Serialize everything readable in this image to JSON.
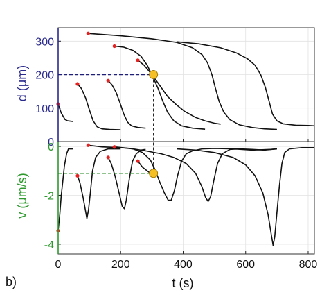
{
  "figure": {
    "panel_label": "b)",
    "xlabel": "t (s)",
    "top_ylabel": "d (μm)",
    "bottom_ylabel": "v (μm/s)",
    "top_axis_color": "#2a2a8c",
    "bottom_axis_color": "#2e9a2e",
    "guide_top_color": "#1f1f7a",
    "guide_bottom_color": "#1f8a1f",
    "marker_color": "#e52222",
    "highlight_fill": "#f5bf26",
    "highlight_stroke": "#a67c00"
  },
  "chart_data": [
    {
      "type": "line",
      "panel": "top",
      "ylabel": "d (μm)",
      "xlim": [
        0,
        820
      ],
      "ylim": [
        0,
        340
      ],
      "x_ticks": [
        0,
        200,
        400,
        600,
        800
      ],
      "y_ticks": [
        0,
        100,
        200,
        300
      ],
      "grid": true,
      "series": [
        {
          "points": [
            [
              0,
              112
            ],
            [
              10,
              85
            ],
            [
              22,
              66
            ],
            [
              30,
              62
            ],
            [
              48,
              60
            ]
          ]
        },
        {
          "points": [
            [
              62,
              172
            ],
            [
              75,
              158
            ],
            [
              88,
              130
            ],
            [
              100,
              95
            ],
            [
              112,
              62
            ],
            [
              125,
              44
            ],
            [
              140,
              38
            ],
            [
              165,
              36
            ],
            [
              200,
              35
            ]
          ]
        },
        {
          "points": [
            [
              160,
              182
            ],
            [
              172,
              170
            ],
            [
              185,
              148
            ],
            [
              197,
              118
            ],
            [
              210,
              82
            ],
            [
              222,
              58
            ],
            [
              235,
              47
            ],
            [
              255,
              42
            ],
            [
              280,
              40
            ]
          ]
        },
        {
          "points": [
            [
              180,
              285
            ],
            [
              210,
              282
            ],
            [
              240,
              272
            ],
            [
              265,
              255
            ],
            [
              285,
              228
            ],
            [
              305,
              190
            ],
            [
              320,
              158
            ],
            [
              335,
              120
            ],
            [
              350,
              88
            ],
            [
              370,
              62
            ],
            [
              395,
              47
            ],
            [
              430,
              40
            ],
            [
              470,
              37
            ]
          ]
        },
        {
          "points": [
            [
              255,
              243
            ],
            [
              275,
              228
            ],
            [
              300,
              200
            ],
            [
              325,
              168
            ],
            [
              350,
              135
            ],
            [
              378,
              110
            ],
            [
              405,
              90
            ],
            [
              440,
              72
            ],
            [
              470,
              62
            ],
            [
              500,
              55
            ],
            [
              520,
              52
            ]
          ]
        },
        {
          "points": [
            [
              96,
              323
            ],
            [
              200,
              316
            ],
            [
              300,
              307
            ],
            [
              380,
              296
            ],
            [
              430,
              280
            ],
            [
              460,
              260
            ],
            [
              478,
              235
            ],
            [
              492,
              200
            ],
            [
              503,
              160
            ],
            [
              515,
              120
            ],
            [
              530,
              88
            ],
            [
              550,
              65
            ],
            [
              580,
              50
            ],
            [
              620,
              42
            ],
            [
              660,
              38
            ],
            [
              700,
              36
            ]
          ]
        },
        {
          "points": [
            [
              380,
              298
            ],
            [
              450,
              292
            ],
            [
              520,
              280
            ],
            [
              570,
              265
            ],
            [
              605,
              248
            ],
            [
              630,
              228
            ],
            [
              648,
              200
            ],
            [
              663,
              162
            ],
            [
              675,
              120
            ],
            [
              686,
              82
            ],
            [
              700,
              62
            ],
            [
              720,
              53
            ],
            [
              760,
              49
            ],
            [
              800,
              48
            ],
            [
              820,
              47
            ]
          ]
        }
      ],
      "start_markers": [
        [
          0,
          112
        ],
        [
          62,
          172
        ],
        [
          160,
          182
        ],
        [
          180,
          285
        ],
        [
          255,
          243
        ],
        [
          96,
          323
        ]
      ],
      "highlight_point": [
        305,
        200
      ]
    },
    {
      "type": "line",
      "panel": "bottom",
      "ylabel": "v (μm/s)",
      "xlim": [
        0,
        820
      ],
      "ylim": [
        -4.4,
        0.2
      ],
      "x_ticks": [
        0,
        200,
        400,
        600,
        800
      ],
      "y_ticks": [
        0,
        -2,
        -4
      ],
      "grid": true,
      "series": [
        {
          "points": [
            [
              0,
              -3.45
            ],
            [
              5,
              -2.8
            ],
            [
              10,
              -2.0
            ],
            [
              15,
              -1.4
            ],
            [
              20,
              -0.8
            ],
            [
              27,
              -0.3
            ],
            [
              33,
              -0.1
            ],
            [
              48,
              -0.1
            ]
          ]
        },
        {
          "points": [
            [
              62,
              -1.2
            ],
            [
              70,
              -1.5
            ],
            [
              80,
              -2.1
            ],
            [
              87,
              -2.6
            ],
            [
              92,
              -2.95
            ],
            [
              97,
              -2.6
            ],
            [
              103,
              -1.9
            ],
            [
              110,
              -1.0
            ],
            [
              120,
              -0.45
            ],
            [
              135,
              -0.2
            ],
            [
              160,
              -0.1
            ],
            [
              200,
              -0.1
            ]
          ]
        },
        {
          "points": [
            [
              160,
              -0.45
            ],
            [
              170,
              -0.7
            ],
            [
              182,
              -1.2
            ],
            [
              195,
              -1.9
            ],
            [
              205,
              -2.45
            ],
            [
              212,
              -2.55
            ],
            [
              218,
              -2.2
            ],
            [
              228,
              -1.3
            ],
            [
              238,
              -0.6
            ],
            [
              250,
              -0.3
            ],
            [
              265,
              -0.15
            ],
            [
              280,
              -0.12
            ]
          ]
        },
        {
          "points": [
            [
              96,
              0.05
            ],
            [
              140,
              -0.02
            ],
            [
              200,
              -0.05
            ],
            [
              240,
              -0.1
            ],
            [
              270,
              -0.25
            ],
            [
              295,
              -0.55
            ],
            [
              310,
              -0.95
            ],
            [
              325,
              -1.45
            ],
            [
              340,
              -1.9
            ],
            [
              352,
              -2.2
            ],
            [
              362,
              -2.2
            ],
            [
              372,
              -1.8
            ],
            [
              382,
              -1.2
            ],
            [
              395,
              -0.6
            ],
            [
              410,
              -0.3
            ],
            [
              430,
              -0.18
            ],
            [
              460,
              -0.1
            ],
            [
              500,
              -0.08
            ],
            [
              560,
              -0.1
            ],
            [
              620,
              -0.15
            ],
            [
              680,
              -0.12
            ],
            [
              700,
              -0.1
            ]
          ]
        },
        {
          "points": [
            [
              180,
              -0.02
            ],
            [
              230,
              -0.08
            ],
            [
              280,
              -0.18
            ],
            [
              330,
              -0.3
            ],
            [
              370,
              -0.45
            ],
            [
              410,
              -0.7
            ],
            [
              440,
              -1.1
            ],
            [
              460,
              -1.65
            ],
            [
              472,
              -2.1
            ],
            [
              480,
              -2.25
            ],
            [
              488,
              -2.05
            ],
            [
              498,
              -1.4
            ],
            [
              510,
              -0.7
            ],
            [
              525,
              -0.3
            ],
            [
              550,
              -0.12
            ],
            [
              580,
              -0.1
            ],
            [
              620,
              -0.12
            ],
            [
              660,
              -0.15
            ],
            [
              700,
              -0.1
            ]
          ]
        },
        {
          "points": [
            [
              255,
              -0.6
            ],
            [
              270,
              -0.85
            ],
            [
              290,
              -1.05
            ],
            [
              305,
              -1.1
            ]
          ]
        },
        {
          "points": [
            [
              380,
              -0.1
            ],
            [
              440,
              -0.15
            ],
            [
              500,
              -0.25
            ],
            [
              560,
              -0.45
            ],
            [
              600,
              -0.75
            ],
            [
              630,
              -1.2
            ],
            [
              655,
              -1.9
            ],
            [
              672,
              -2.8
            ],
            [
              682,
              -3.6
            ],
            [
              688,
              -4.05
            ],
            [
              693,
              -3.7
            ],
            [
              700,
              -2.7
            ],
            [
              708,
              -1.6
            ],
            [
              716,
              -0.7
            ],
            [
              725,
              -0.25
            ],
            [
              740,
              -0.1
            ],
            [
              780,
              -0.05
            ],
            [
              820,
              -0.05
            ]
          ]
        }
      ],
      "start_markers": [
        [
          0,
          -3.45
        ],
        [
          62,
          -1.2
        ],
        [
          160,
          -0.45
        ],
        [
          96,
          0.05
        ],
        [
          180,
          -0.02
        ],
        [
          255,
          -0.6
        ]
      ],
      "highlight_point": [
        305,
        -1.1
      ]
    }
  ]
}
